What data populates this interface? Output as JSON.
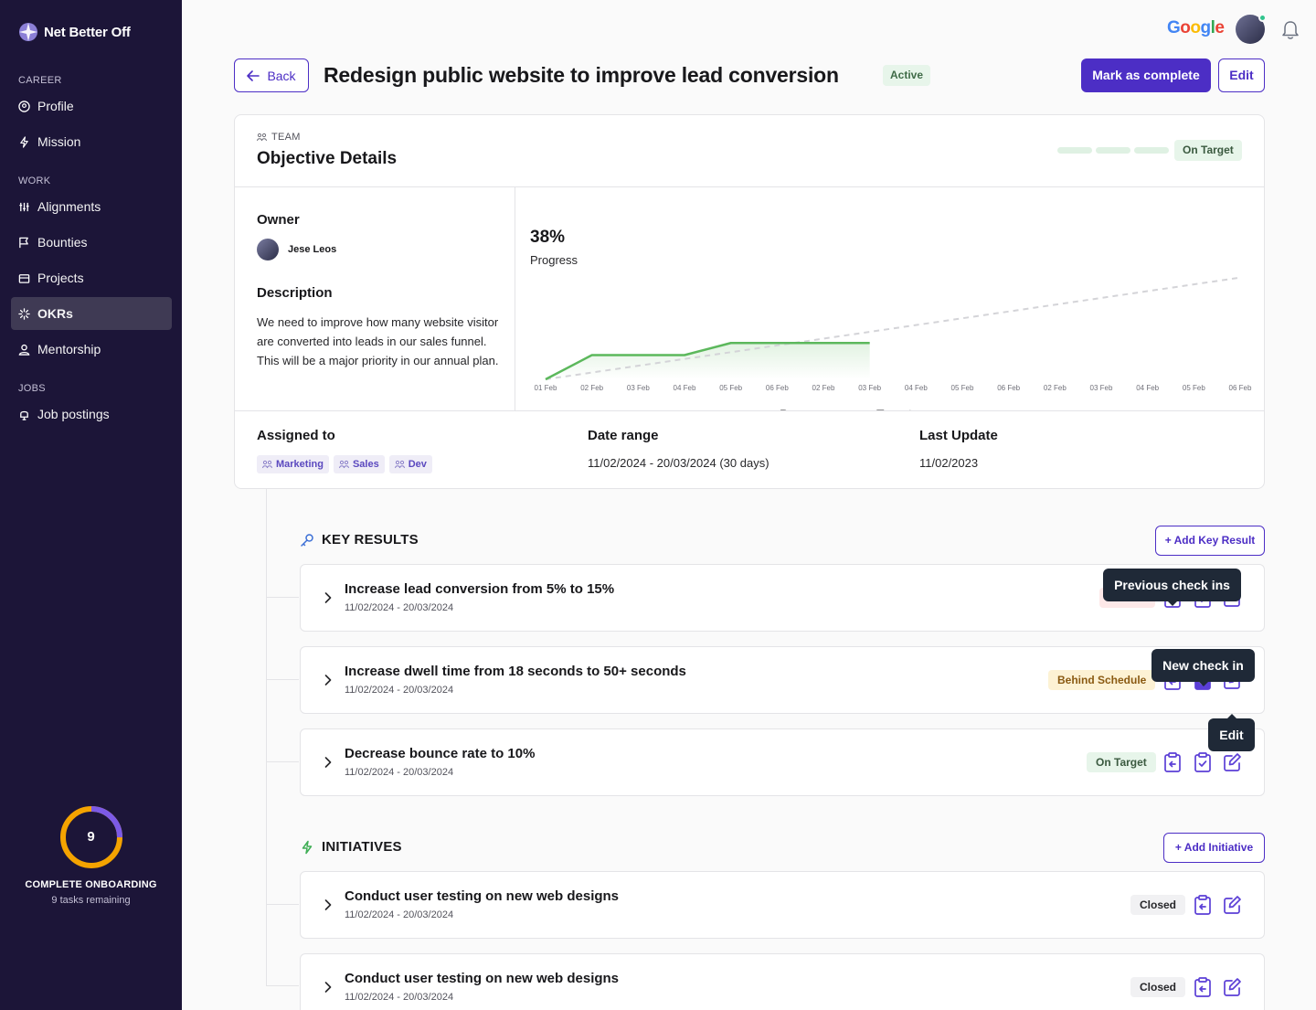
{
  "app": {
    "name": "Net Better Off",
    "google_label": "Google"
  },
  "sidebar": {
    "sections": [
      {
        "label": "CAREER",
        "items": [
          {
            "label": "Profile",
            "icon": "profile-icon"
          },
          {
            "label": "Mission",
            "icon": "bolt-icon"
          }
        ]
      },
      {
        "label": "WORK",
        "items": [
          {
            "label": "Alignments",
            "icon": "alignments-icon"
          },
          {
            "label": "Bounties",
            "icon": "flag-icon"
          },
          {
            "label": "Projects",
            "icon": "project-icon"
          },
          {
            "label": "OKRs",
            "icon": "okr-icon",
            "active": true
          },
          {
            "label": "Mentorship",
            "icon": "mentorship-icon"
          }
        ]
      },
      {
        "label": "JOBS",
        "items": [
          {
            "label": "Job postings",
            "icon": "job-icon"
          }
        ]
      }
    ],
    "onboarding": {
      "count": "9",
      "title": "COMPLETE ONBOARDING",
      "subtitle": "9 tasks remaining",
      "progress": 0.75
    }
  },
  "header": {
    "back_label": "Back",
    "title": "Redesign public website to improve lead conversion",
    "status": "Active",
    "complete_label": "Mark as complete",
    "edit_label": "Edit"
  },
  "objective": {
    "type_label": "TEAM",
    "title": "Objective Details",
    "status": "On Target",
    "owner_label": "Owner",
    "owner_name": "Jese Leos",
    "description_label": "Description",
    "description": "We need to improve how many website visitor are converted into leads in our sales funnel. This will be a major priority in our annual plan.",
    "progress_value": "38%",
    "progress_label": "Progress",
    "assigned_label": "Assigned to",
    "tags": [
      "Marketing",
      "Sales",
      "Dev"
    ],
    "date_range_label": "Date range",
    "date_range": "11/02/2024 - 20/03/2024 (30 days)",
    "last_update_label": "Last Update",
    "last_update": "11/02/2023"
  },
  "chart_data": {
    "type": "line",
    "categories": [
      "01 Feb",
      "02 Feb",
      "03 Feb",
      "04 Feb",
      "05 Feb",
      "06 Feb",
      "02 Feb",
      "03 Feb",
      "04 Feb",
      "05 Feb",
      "06 Feb",
      "02 Feb",
      "03 Feb",
      "04 Feb",
      "05 Feb",
      "06 Feb"
    ],
    "series": [
      {
        "name": "Progress",
        "color": "#5cb85c",
        "values": [
          0,
          10,
          10,
          10,
          15,
          15,
          15,
          15,
          null,
          null,
          null,
          null,
          null,
          null,
          null,
          null
        ]
      },
      {
        "name": "Target",
        "color": "#d4d4d8",
        "values": [
          0,
          2.8,
          5.6,
          8.4,
          11.2,
          14,
          16.8,
          19.6,
          22.4,
          25.2,
          28,
          30.8,
          33.6,
          36.4,
          39.2,
          42
        ]
      }
    ],
    "ylim": [
      0,
      60
    ],
    "legend": "bottom",
    "grid": false
  },
  "key_results": {
    "heading": "KEY RESULTS",
    "add_label": "+ Add Key Result",
    "items": [
      {
        "title": "Increase lead conversion from 5% to 15%",
        "dates": "11/02/2024 - 20/03/2024",
        "status": "At Risk",
        "status_color": "red"
      },
      {
        "title": "Increase dwell time from 18 seconds to 50+ seconds",
        "dates": "11/02/2024 - 20/03/2024",
        "status": "Behind Schedule",
        "status_color": "yellow"
      },
      {
        "title": "Decrease bounce rate to 10%",
        "dates": "11/02/2024 - 20/03/2024",
        "status": "On Target",
        "status_color": "green"
      }
    ],
    "tooltips": {
      "previous": "Previous check ins",
      "new": "New check in",
      "edit": "Edit"
    }
  },
  "initiatives": {
    "heading": "INITIATIVES",
    "add_label": "+ Add Initiative",
    "items": [
      {
        "title": "Conduct user testing on new web designs",
        "dates": "11/02/2024 - 20/03/2024",
        "status": "Closed"
      },
      {
        "title": "Conduct user testing on new web designs",
        "dates": "11/02/2024 - 20/03/2024",
        "status": "Closed"
      }
    ]
  }
}
